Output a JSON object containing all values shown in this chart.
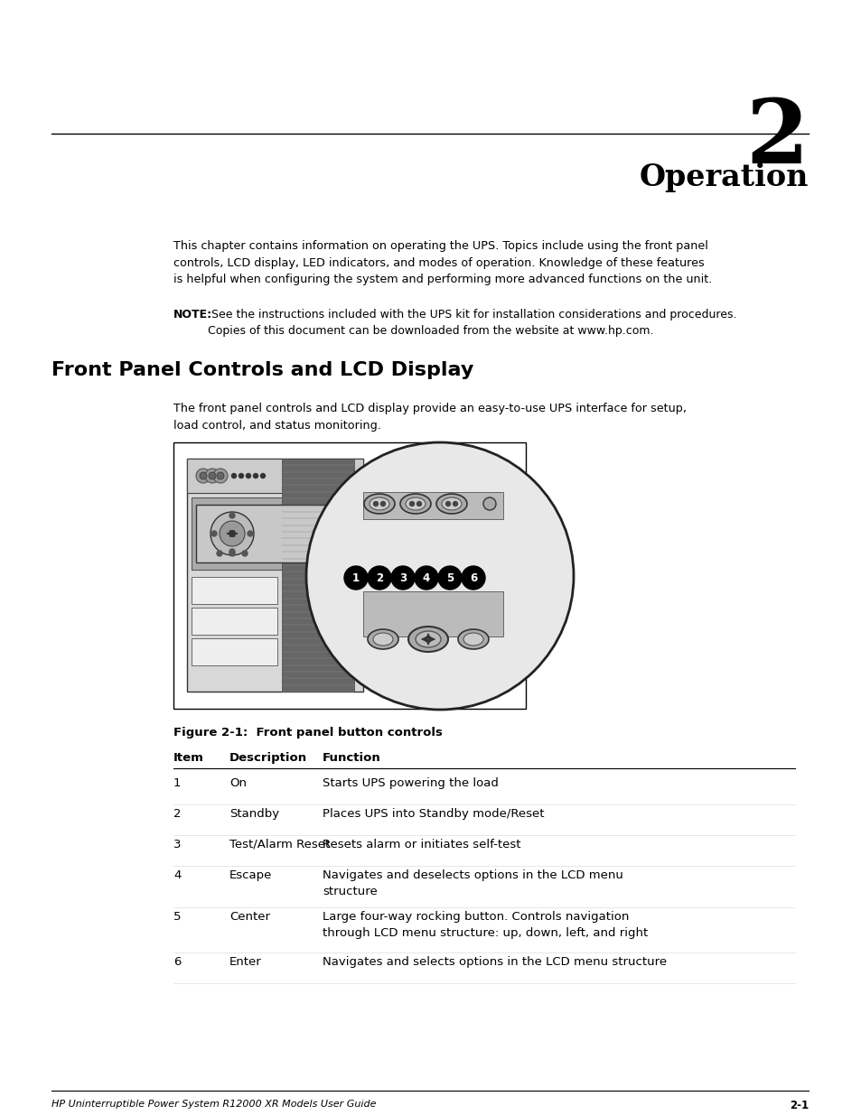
{
  "chapter_num": "2",
  "chapter_title": "Operation",
  "section_title": "Front Panel Controls and LCD Display",
  "intro_text": "This chapter contains information on operating the UPS. Topics include using the front panel\ncontrols, LCD display, LED indicators, and modes of operation. Knowledge of these features\nis helpful when configuring the system and performing more advanced functions on the unit.",
  "note_bold": "NOTE:",
  "note_text": " See the instructions included with the UPS kit for installation considerations and procedures.\nCopies of this document can be downloaded from the website at www.hp.com.",
  "section_intro": "The front panel controls and LCD display provide an easy-to-use UPS interface for setup,\nload control, and status monitoring.",
  "figure_caption": "Figure 2-1:  Front panel button controls",
  "table_headers": [
    "Item",
    "Description",
    "Function"
  ],
  "table_rows": [
    [
      "1",
      "On",
      "Starts UPS powering the load"
    ],
    [
      "2",
      "Standby",
      "Places UPS into Standby mode/Reset"
    ],
    [
      "3",
      "Test/Alarm Reset",
      "Resets alarm or initiates self-test"
    ],
    [
      "4",
      "Escape",
      "Navigates and deselects options in the LCD menu\nstructure"
    ],
    [
      "5",
      "Center",
      "Large four-way rocking button. Controls navigation\nthrough LCD menu structure: up, down, left, and right"
    ],
    [
      "6",
      "Enter",
      "Navigates and selects options in the LCD menu structure"
    ]
  ],
  "footer_left": "HP Uninterruptible Power System R12000 XR Models User Guide",
  "footer_right": "2-1",
  "bg_color": "#ffffff",
  "text_color": "#000000"
}
